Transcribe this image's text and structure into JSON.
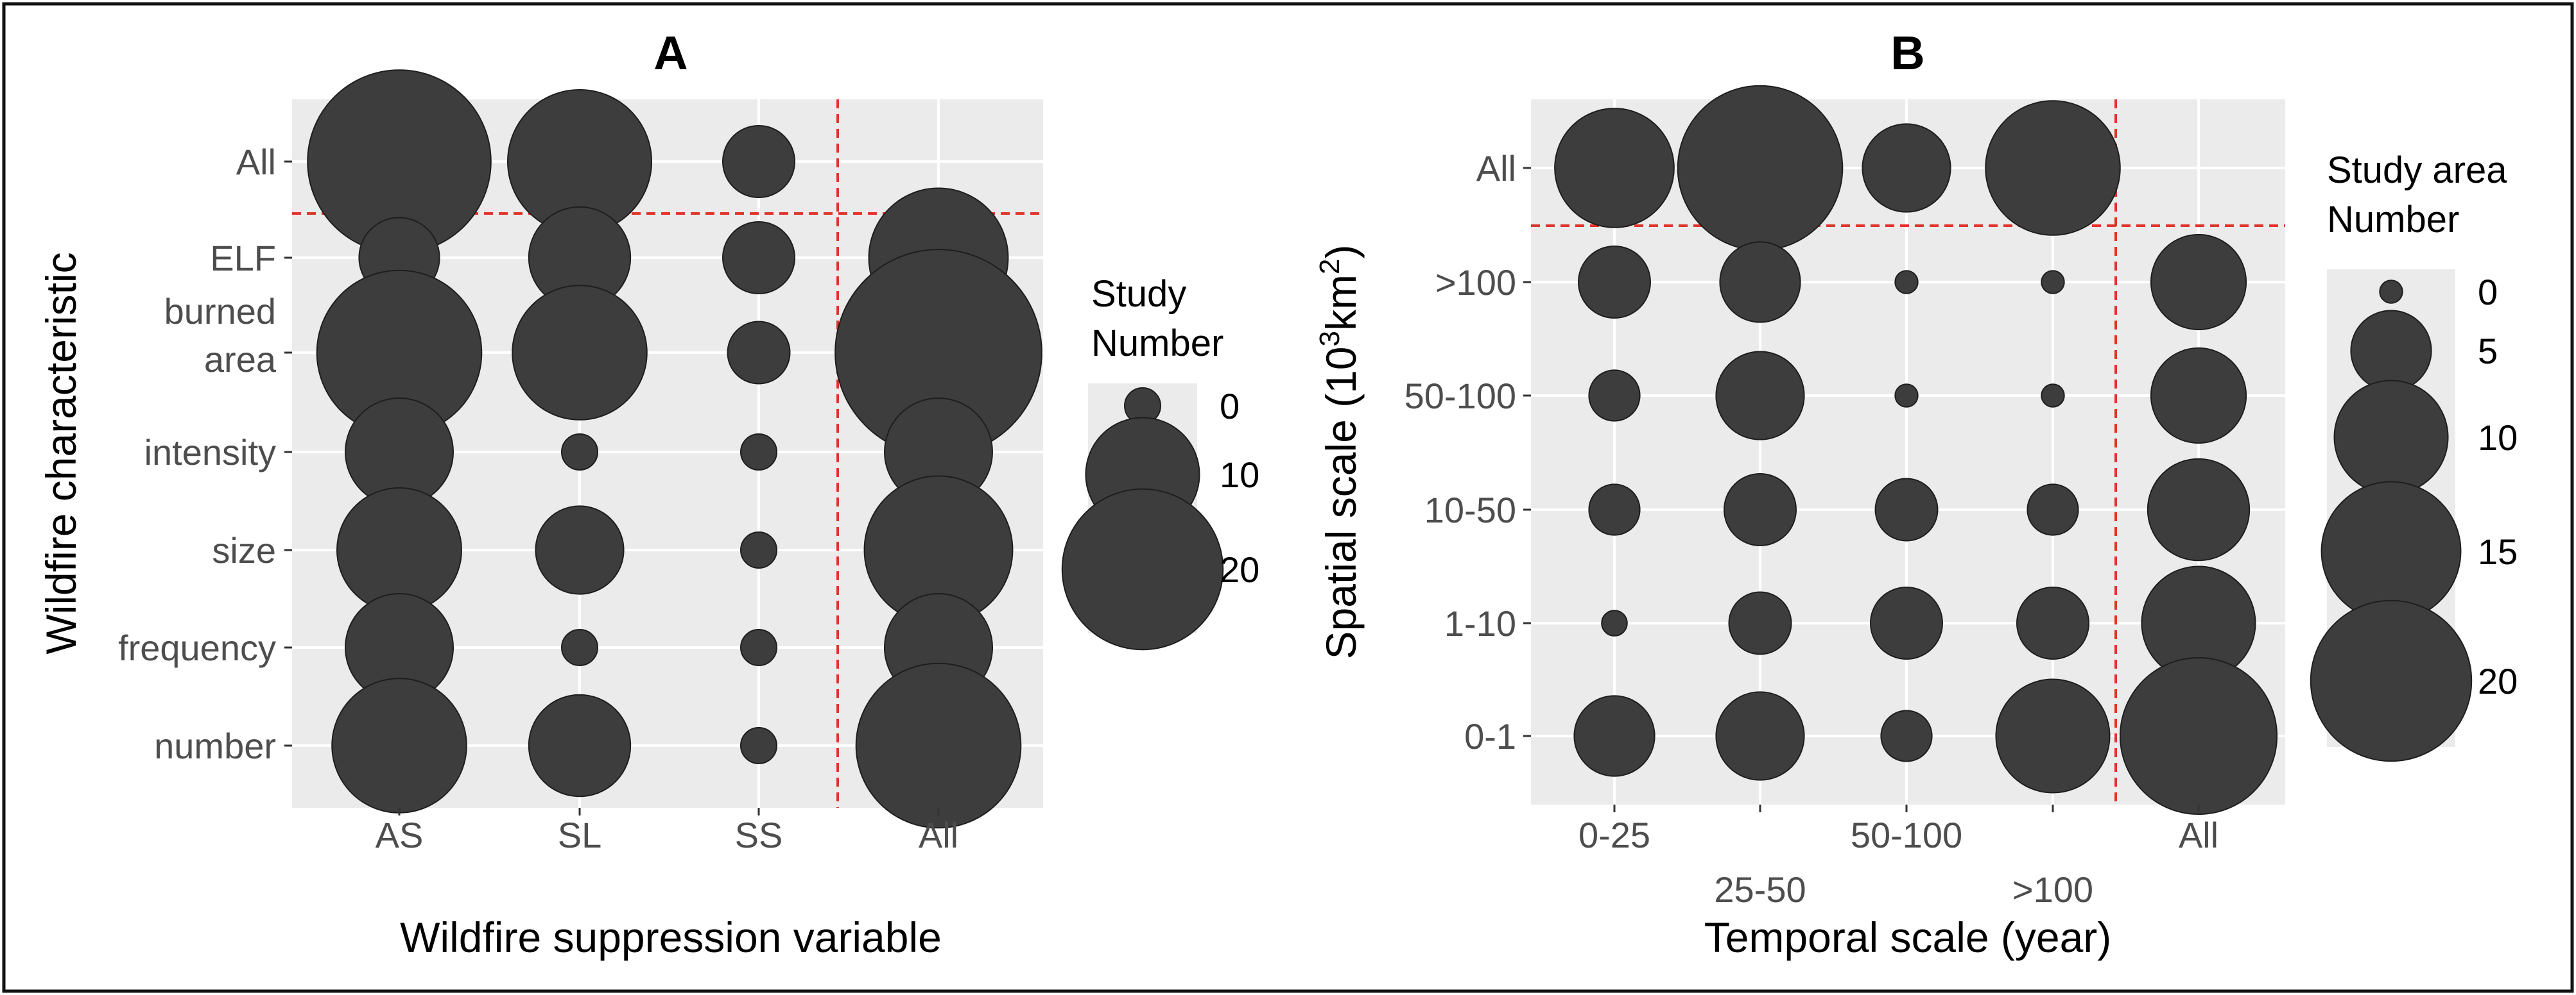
{
  "colors": {
    "panel_bg": "#ebebeb",
    "grid": "#ffffff",
    "bubble_fill": "#3d3d3d",
    "bubble_stroke": "#1e1e1e",
    "divider": "#e0342c",
    "text": "#4d4d4d",
    "title": "#000000"
  },
  "chart_data": [
    {
      "type": "scatter",
      "title": "A",
      "xlabel": "Wildfire suppression variable",
      "ylabel": "Wildfire characteristic",
      "categories_x": [
        "AS",
        "SL",
        "SS",
        "All"
      ],
      "categories_y": [
        "All",
        "ELF",
        "burned area",
        "intensity",
        "size",
        "frequency",
        "number"
      ],
      "points": [
        {
          "x": "AS",
          "y": "All",
          "value": 26
        },
        {
          "x": "SL",
          "y": "All",
          "value": 16
        },
        {
          "x": "SS",
          "y": "All",
          "value": 4
        },
        {
          "x": "AS",
          "y": "ELF",
          "value": 5
        },
        {
          "x": "SL",
          "y": "ELF",
          "value": 8
        },
        {
          "x": "SS",
          "y": "ELF",
          "value": 4
        },
        {
          "x": "All",
          "y": "ELF",
          "value": 15
        },
        {
          "x": "AS",
          "y": "burned area",
          "value": 21
        },
        {
          "x": "SL",
          "y": "burned area",
          "value": 14
        },
        {
          "x": "SS",
          "y": "burned area",
          "value": 3
        },
        {
          "x": "All",
          "y": "burned area",
          "value": 33
        },
        {
          "x": "AS",
          "y": "intensity",
          "value": 9
        },
        {
          "x": "SL",
          "y": "intensity",
          "value": 1
        },
        {
          "x": "SS",
          "y": "intensity",
          "value": 1
        },
        {
          "x": "All",
          "y": "intensity",
          "value": 9
        },
        {
          "x": "AS",
          "y": "size",
          "value": 12
        },
        {
          "x": "SL",
          "y": "size",
          "value": 6
        },
        {
          "x": "SS",
          "y": "size",
          "value": 1
        },
        {
          "x": "All",
          "y": "size",
          "value": 17
        },
        {
          "x": "AS",
          "y": "frequency",
          "value": 9
        },
        {
          "x": "SL",
          "y": "frequency",
          "value": 1
        },
        {
          "x": "SS",
          "y": "frequency",
          "value": 1
        },
        {
          "x": "All",
          "y": "frequency",
          "value": 9
        },
        {
          "x": "AS",
          "y": "number",
          "value": 14
        },
        {
          "x": "SL",
          "y": "number",
          "value": 8
        },
        {
          "x": "SS",
          "y": "number",
          "value": 1
        },
        {
          "x": "All",
          "y": "number",
          "value": 21
        }
      ],
      "legend": {
        "title_lines": [
          "Study",
          "Number"
        ],
        "entries": [
          {
            "label": "0",
            "value": 1
          },
          {
            "label": "10",
            "value": 10
          },
          {
            "label": "20",
            "value": 20
          }
        ],
        "position": "right"
      }
    },
    {
      "type": "scatter",
      "title": "B",
      "xlabel": "Temporal scale (year)",
      "ylabel_main": "Spatial scale (10",
      "ylabel_sup1": "3",
      "ylabel_mid": "km",
      "ylabel_sup2": "2",
      "ylabel_end": ")",
      "categories_x": [
        "0-25",
        "25-50",
        "50-100",
        ">100",
        "All"
      ],
      "categories_y": [
        "All",
        ">100",
        "50-100",
        "10-50",
        "1-10",
        "0-1"
      ],
      "points": [
        {
          "x": "0-25",
          "y": "All",
          "value": 11
        },
        {
          "x": "25-50",
          "y": "All",
          "value": 21
        },
        {
          "x": "50-100",
          "y": "All",
          "value": 6
        },
        {
          "x": ">100",
          "y": "All",
          "value": 14
        },
        {
          "x": "0-25",
          "y": ">100",
          "value": 4
        },
        {
          "x": "25-50",
          "y": ">100",
          "value": 5
        },
        {
          "x": "50-100",
          "y": ">100",
          "value": 0.4
        },
        {
          "x": ">100",
          "y": ">100",
          "value": 0.4
        },
        {
          "x": "All",
          "y": ">100",
          "value": 7
        },
        {
          "x": "0-25",
          "y": "50-100",
          "value": 2
        },
        {
          "x": "25-50",
          "y": "50-100",
          "value": 6
        },
        {
          "x": "50-100",
          "y": "50-100",
          "value": 0.4
        },
        {
          "x": ">100",
          "y": "50-100",
          "value": 0.4
        },
        {
          "x": "All",
          "y": "50-100",
          "value": 7
        },
        {
          "x": "0-25",
          "y": "10-50",
          "value": 2
        },
        {
          "x": "25-50",
          "y": "10-50",
          "value": 4
        },
        {
          "x": "50-100",
          "y": "10-50",
          "value": 3
        },
        {
          "x": ">100",
          "y": "10-50",
          "value": 2
        },
        {
          "x": "All",
          "y": "10-50",
          "value": 8
        },
        {
          "x": "0-25",
          "y": "1-10",
          "value": 0.5
        },
        {
          "x": "25-50",
          "y": "1-10",
          "value": 3
        },
        {
          "x": "50-100",
          "y": "1-10",
          "value": 4
        },
        {
          "x": ">100",
          "y": "1-10",
          "value": 4
        },
        {
          "x": "All",
          "y": "1-10",
          "value": 10
        },
        {
          "x": "0-25",
          "y": "0-1",
          "value": 5
        },
        {
          "x": "25-50",
          "y": "0-1",
          "value": 6
        },
        {
          "x": "50-100",
          "y": "0-1",
          "value": 2
        },
        {
          "x": ">100",
          "y": "0-1",
          "value": 10
        },
        {
          "x": "All",
          "y": "0-1",
          "value": 19
        }
      ],
      "legend": {
        "title_lines": [
          "Study area",
          "Number"
        ],
        "entries": [
          {
            "label": "0",
            "value": 0.4
          },
          {
            "label": "5",
            "value": 5
          },
          {
            "label": "10",
            "value": 10
          },
          {
            "label": "15",
            "value": 15
          },
          {
            "label": "20",
            "value": 20
          }
        ],
        "position": "right"
      }
    }
  ]
}
